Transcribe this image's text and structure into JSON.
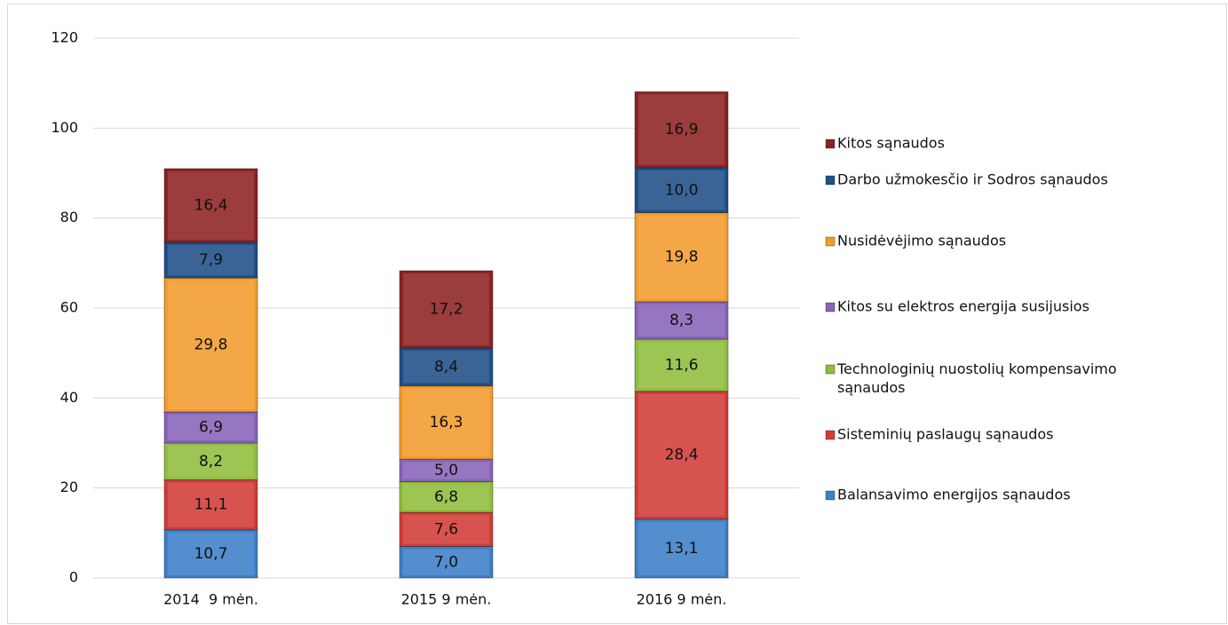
{
  "chart_data": {
    "type": "stacked_bar",
    "categories": [
      "2014  9 mėn.",
      "2015 9 mėn.",
      "2016 9 mėn."
    ],
    "series": [
      {
        "name": "Balansavimo energijos sąnaudos",
        "color": "#3d7fc9",
        "values": [
          10.7,
          7.0,
          13.1
        ],
        "value_labels": [
          "10,7",
          "7,0",
          "13,1"
        ]
      },
      {
        "name": "Sisteminių paslaugų sąnaudos",
        "color": "#d23c38",
        "values": [
          11.1,
          7.6,
          28.4
        ],
        "value_labels": [
          "11,1",
          "7,6",
          "28,4"
        ]
      },
      {
        "name": "Technologinių nuostolių kompensavimo sąnaudos",
        "color": "#8fbd3d",
        "values": [
          8.2,
          6.8,
          11.6
        ],
        "value_labels": [
          "8,2",
          "6,8",
          "11,6"
        ]
      },
      {
        "name": "Kitos su elektros energija susijusios",
        "color": "#8963b9",
        "values": [
          6.9,
          5.0,
          8.3
        ],
        "value_labels": [
          "6,9",
          "5,0",
          "8,3"
        ]
      },
      {
        "name": "Nusidėvėjimo sąnaudos",
        "color": "#f39b2d",
        "values": [
          29.8,
          16.3,
          19.8
        ],
        "value_labels": [
          "29,8",
          "16,3",
          "19,8"
        ]
      },
      {
        "name": "Darbo užmokesčio ir Sodros sąnaudos",
        "color": "#1f4f87",
        "values": [
          7.9,
          8.4,
          10.0
        ],
        "value_labels": [
          "7,9",
          "8,4",
          "10,0"
        ]
      },
      {
        "name": "Kitos sąnaudos",
        "color": "#8c2321",
        "values": [
          16.4,
          17.2,
          16.9
        ],
        "value_labels": [
          "16,4",
          "17,2",
          "16,9"
        ]
      }
    ],
    "ylim": [
      0,
      120
    ],
    "yticks": [
      0,
      20,
      40,
      60,
      80,
      100,
      120
    ],
    "grid": true,
    "legend": "right"
  }
}
